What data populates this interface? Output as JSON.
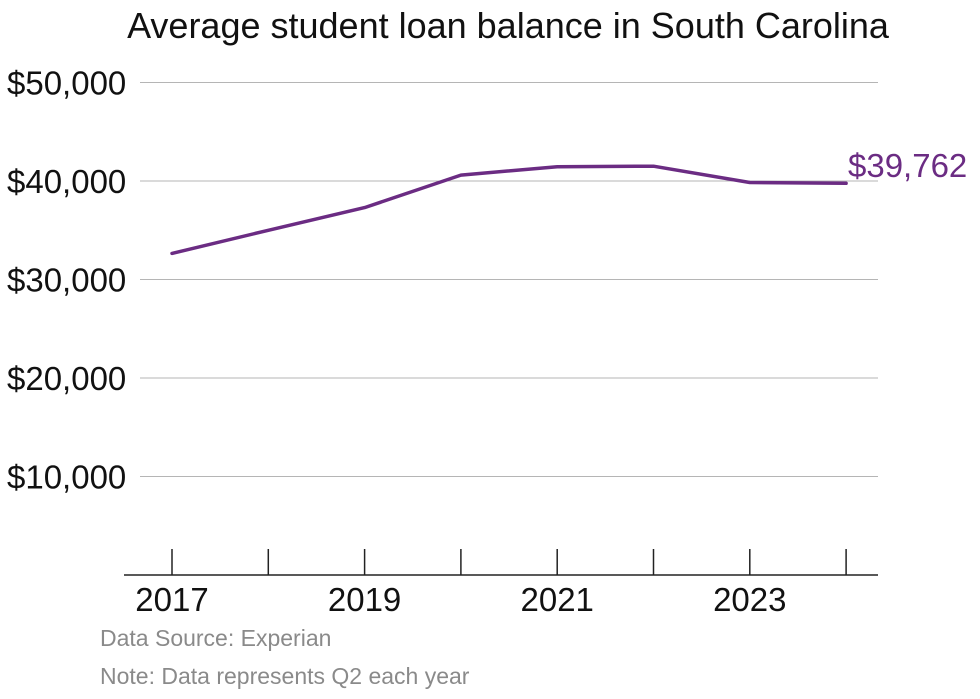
{
  "chart_data": {
    "type": "line",
    "title": "Average student loan balance in South Carolina",
    "xlabel": "",
    "ylabel": "",
    "x": [
      2017,
      2018,
      2019,
      2020,
      2021,
      2022,
      2023,
      2024
    ],
    "series": [
      {
        "values": [
          32650,
          35000,
          37300,
          40600,
          41450,
          41500,
          39850,
          39762
        ]
      }
    ],
    "ylim": [
      0,
      50000
    ],
    "yticks": [
      10000,
      20000,
      30000,
      40000,
      50000
    ],
    "ytick_labels": [
      "$10,000",
      "$20,000",
      "$30,000",
      "$40,000",
      "$50,000"
    ],
    "xticks_all": [
      2017,
      2018,
      2019,
      2020,
      2021,
      2022,
      2023,
      2024
    ],
    "xtick_labels": [
      "2017",
      "2019",
      "2021",
      "2023"
    ],
    "xtick_label_years": [
      2017,
      2019,
      2021,
      2023
    ],
    "end_label": "$39,762",
    "grid": "horizontal",
    "colors": {
      "line": "#6b2c83",
      "end_label": "#6b2c83"
    }
  },
  "footer": {
    "source": "Data Source: Experian",
    "note": "Note: Data represents Q2 each year"
  }
}
